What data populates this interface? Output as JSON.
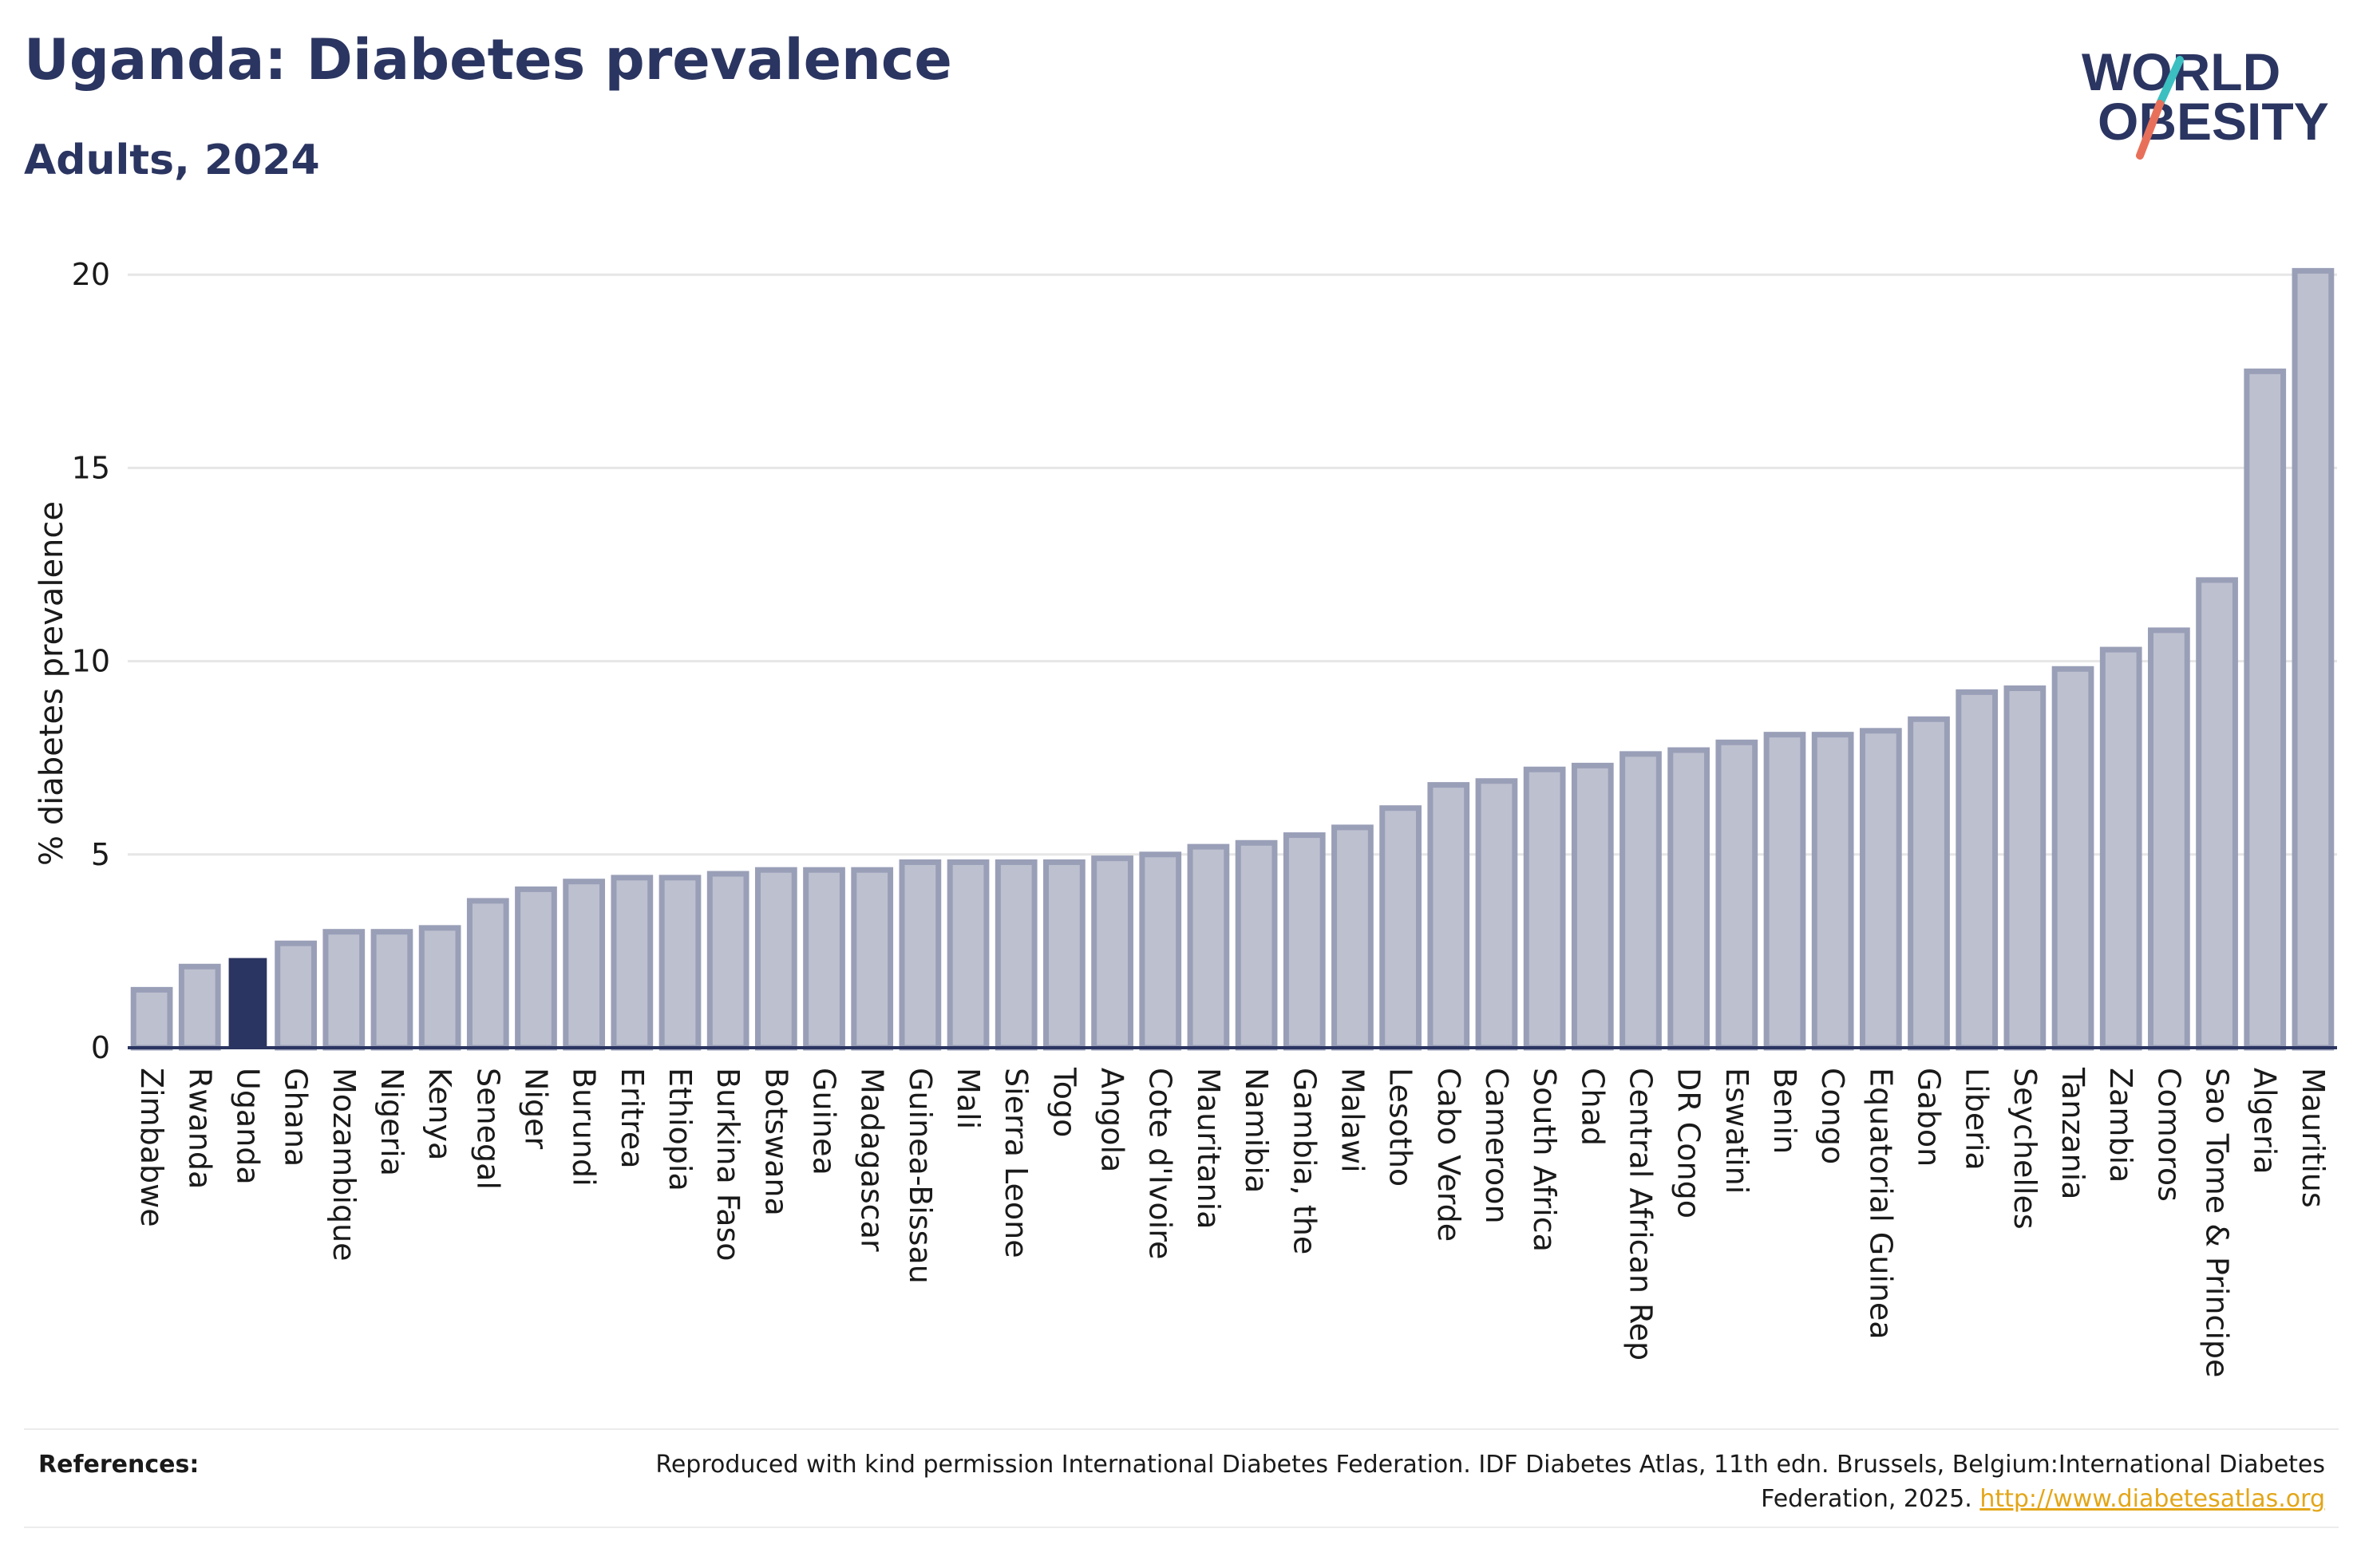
{
  "header": {
    "title": "Uganda: Diabetes prevalence",
    "subtitle": "Adults, 2024"
  },
  "logo": {
    "line1": "WORLD",
    "line2": "OBESITY",
    "colors": {
      "text": "#2b3561",
      "slash_teal": "#3bbfc1",
      "slash_coral": "#e8705a"
    }
  },
  "colors": {
    "highlight_bar": "#2b3561",
    "bar_fill": "#bdc0cf",
    "bar_stroke": "#9a9fb8",
    "grid": "#e6e6e6",
    "axis": "#2b3561",
    "text": "#1a1a1a"
  },
  "chart_data": {
    "type": "bar",
    "ylabel": "% diabetes prevalence",
    "ylim": [
      0,
      20.5
    ],
    "yticks": [
      0,
      5,
      10,
      15,
      20
    ],
    "grid": true,
    "highlight": "Uganda",
    "categories": [
      "Zimbabwe",
      "Rwanda",
      "Uganda",
      "Ghana",
      "Mozambique",
      "Nigeria",
      "Kenya",
      "Senegal",
      "Niger",
      "Burundi",
      "Eritrea",
      "Ethiopia",
      "Burkina Faso",
      "Botswana",
      "Guinea",
      "Madagascar",
      "Guinea-Bissau",
      "Mali",
      "Sierra Leone",
      "Togo",
      "Angola",
      "Cote d'Ivoire",
      "Mauritania",
      "Namibia",
      "Gambia, the",
      "Malawi",
      "Lesotho",
      "Cabo Verde",
      "Cameroon",
      "South Africa",
      "Chad",
      "Central African Rep",
      "DR Congo",
      "Eswatini",
      "Benin",
      "Congo",
      "Equatorial Guinea",
      "Gabon",
      "Liberia",
      "Seychelles",
      "Tanzania",
      "Zambia",
      "Comoros",
      "Sao Tome & Principe",
      "Algeria",
      "Mauritius"
    ],
    "values": [
      1.5,
      2.1,
      2.3,
      2.7,
      3.0,
      3.0,
      3.1,
      3.8,
      4.1,
      4.3,
      4.4,
      4.4,
      4.5,
      4.6,
      4.6,
      4.6,
      4.8,
      4.8,
      4.8,
      4.8,
      4.9,
      5.0,
      5.2,
      5.3,
      5.5,
      5.7,
      6.2,
      6.8,
      6.9,
      7.2,
      7.3,
      7.6,
      7.7,
      7.9,
      8.1,
      8.1,
      8.2,
      8.5,
      9.2,
      9.3,
      9.8,
      10.3,
      10.8,
      12.1,
      17.5,
      20.1
    ]
  },
  "references": {
    "label": "References:",
    "text": "Reproduced with kind permission International Diabetes Federation. IDF Diabetes Atlas, 11th edn. Brussels, Belgium:International Diabetes Federation, 2025.",
    "link": "http://www.diabetesatlas.org"
  }
}
